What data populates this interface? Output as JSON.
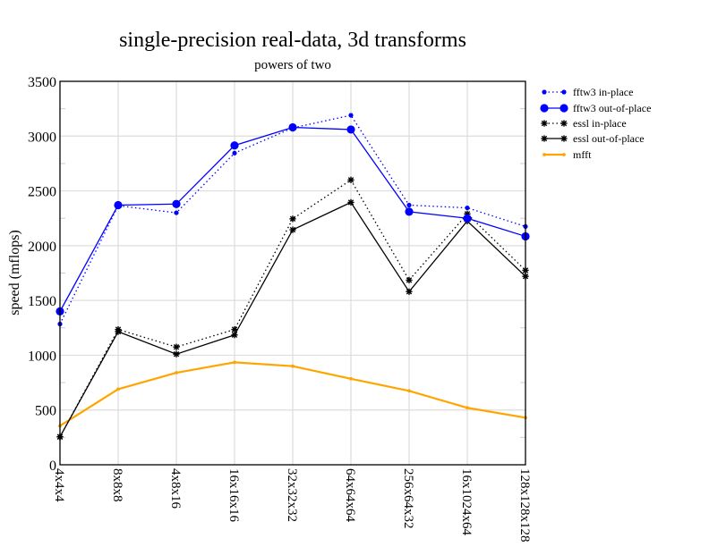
{
  "chart_data": {
    "type": "line",
    "title": "single-precision real-data, 3d transforms",
    "subtitle": "powers of two",
    "xlabel": "",
    "ylabel": "speed (mflops)",
    "ylim": [
      0,
      3500
    ],
    "yticks": [
      0,
      500,
      1000,
      1500,
      2000,
      2500,
      3000,
      3500
    ],
    "ytick_labels": [
      "0",
      "500",
      "1000",
      "1500",
      "2000",
      "2500",
      "3000",
      "3500"
    ],
    "grid": true,
    "legend_position": "right, outside plot (top)",
    "categories": [
      "4x4x4",
      "8x8x8",
      "4x8x16",
      "16x16x16",
      "32x32x32",
      "64x64x64",
      "256x64x32",
      "16x1024x64",
      "128x128x128"
    ],
    "series": [
      {
        "name": "fftw3 in-place",
        "color": "#0000ff",
        "style": "dotted",
        "marker": "dot-small",
        "values": [
          1285,
          2365,
          2300,
          2845,
          3075,
          3190,
          2370,
          2345,
          2175
        ]
      },
      {
        "name": "fftw3 out-of-place",
        "color": "#0000ff",
        "style": "solid",
        "marker": "dot-large",
        "values": [
          1400,
          2370,
          2380,
          2915,
          3080,
          3060,
          2310,
          2250,
          2085
        ]
      },
      {
        "name": "essl in-place",
        "color": "#000000",
        "style": "dotted",
        "marker": "star",
        "values": [
          255,
          1235,
          1075,
          1235,
          2245,
          2600,
          1685,
          2290,
          1775
        ]
      },
      {
        "name": "essl out-of-place",
        "color": "#000000",
        "style": "solid",
        "marker": "star",
        "values": [
          255,
          1215,
          1010,
          1185,
          2145,
          2395,
          1580,
          2225,
          1720
        ]
      },
      {
        "name": "mfft",
        "color": "#ffa500",
        "style": "solid",
        "marker": "dot-tiny",
        "values": [
          355,
          690,
          840,
          935,
          900,
          785,
          675,
          520,
          430
        ]
      }
    ]
  }
}
